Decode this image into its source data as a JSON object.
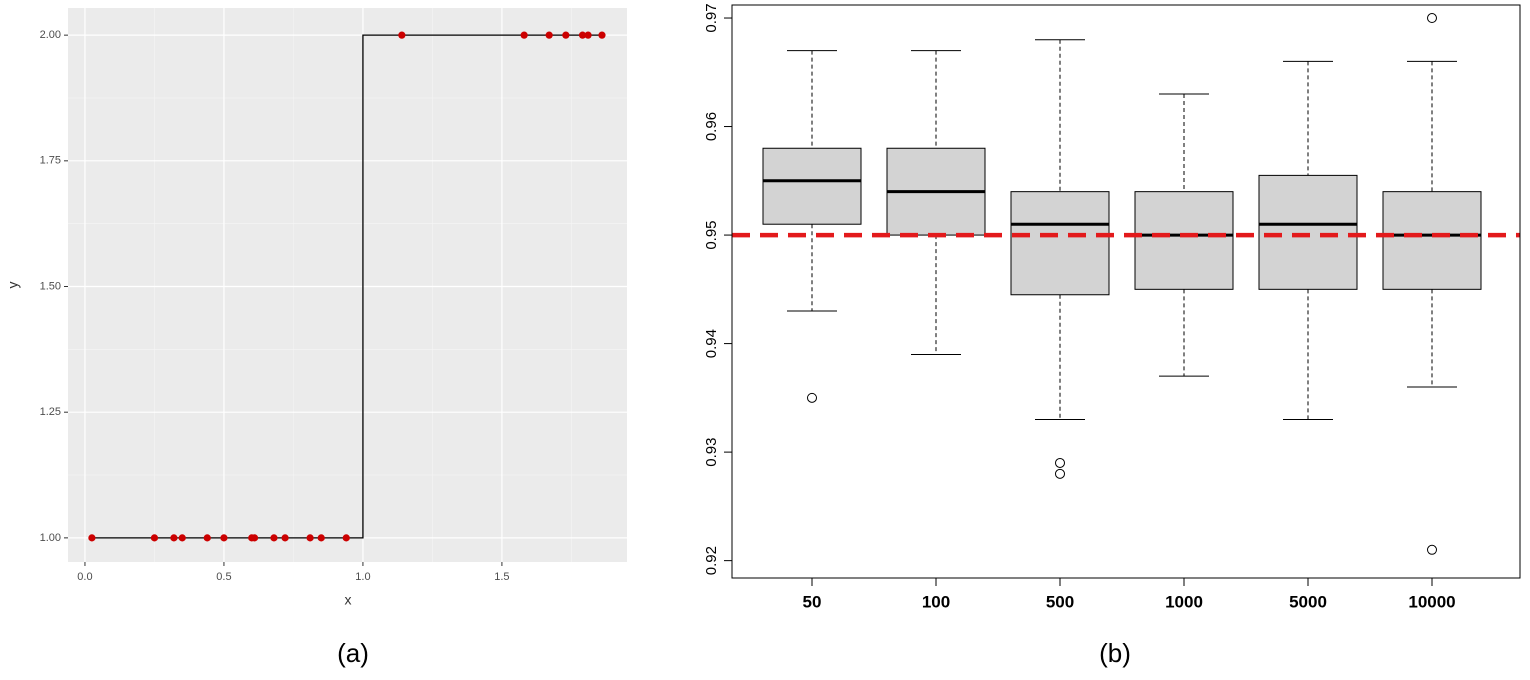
{
  "chart_data": [
    {
      "type": "scatter",
      "caption": "(a)",
      "x_label": "x",
      "y_label": "y",
      "xlim": [
        -0.061,
        1.95
      ],
      "ylim": [
        0.952,
        2.054
      ],
      "xticks": [
        {
          "value": 0,
          "label": "0.0"
        },
        0.5,
        {
          "value": 1,
          "label": "1.0"
        },
        1.5
      ],
      "yticks": [
        {
          "value": 1,
          "label": "1.00"
        },
        1.25,
        {
          "value": 1.5,
          "label": "1.50"
        },
        1.75,
        {
          "value": 2,
          "label": "2.00"
        }
      ],
      "grid": true,
      "series": [
        {
          "color": "#cc0000",
          "x": [
            0.025,
            0.25,
            0.32,
            0.35,
            0.44,
            0.5,
            0.6,
            0.61,
            0.68,
            0.72,
            0.81,
            0.85,
            0.94,
            1.14,
            1.58,
            1.67,
            1.73,
            1.79,
            1.81,
            1.86
          ],
          "values": [
            1,
            1,
            1,
            1,
            1,
            1,
            1,
            1,
            1,
            1,
            1,
            1,
            1,
            2,
            2,
            2,
            2,
            2,
            2,
            2
          ]
        }
      ],
      "step": {
        "color": "#000000",
        "x": [
          0.025,
          1,
          1,
          1.86
        ],
        "values": [
          1,
          1,
          2,
          2
        ]
      }
    },
    {
      "type": "box",
      "caption": "(b)",
      "categories": [
        "50",
        "100",
        "500",
        "1000",
        "5000",
        "10000"
      ],
      "ylim": [
        0.9184,
        0.9712
      ],
      "yticks": [
        0.92,
        0.93,
        0.94,
        0.95,
        0.96,
        0.97
      ],
      "box_color": "#d3d3d3",
      "boxes": [
        {
          "whislo": 0.943,
          "q1": 0.951,
          "med": 0.955,
          "q3": 0.958,
          "whishi": 0.967,
          "fliers": [
            0.935
          ]
        },
        {
          "whislo": 0.939,
          "q1": 0.95,
          "med": 0.954,
          "q3": 0.958,
          "whishi": 0.967,
          "fliers": []
        },
        {
          "whislo": 0.933,
          "q1": 0.9445,
          "med": 0.951,
          "q3": 0.954,
          "whishi": 0.968,
          "fliers": [
            0.929,
            0.928
          ]
        },
        {
          "whislo": 0.937,
          "q1": 0.945,
          "med": 0.95,
          "q3": 0.954,
          "whishi": 0.963,
          "fliers": []
        },
        {
          "whislo": 0.933,
          "q1": 0.945,
          "med": 0.951,
          "q3": 0.9555,
          "whishi": 0.966,
          "fliers": []
        },
        {
          "whislo": 0.936,
          "q1": 0.945,
          "med": 0.95,
          "q3": 0.954,
          "whishi": 0.966,
          "fliers": [
            0.97,
            0.921
          ]
        }
      ],
      "hline": {
        "value": 0.95,
        "color": "#e31a1c"
      }
    }
  ]
}
